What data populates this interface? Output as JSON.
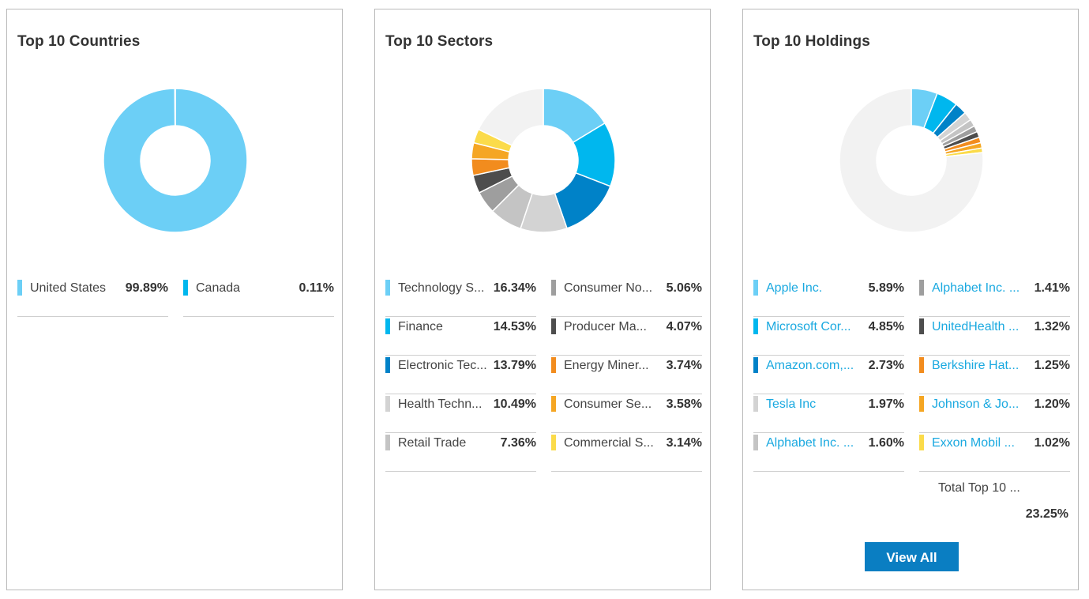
{
  "cards": {
    "countries": {
      "title": "Top 10 Countries"
    },
    "sectors": {
      "title": "Top 10 Sectors"
    },
    "holdings": {
      "title": "Top 10 Holdings",
      "total_label": "Total Top 10 ...",
      "total_value": "23.25%",
      "view_all_label": "View All",
      "remainder_color": "#f2f2f2"
    }
  },
  "chart_data": [
    {
      "type": "pie",
      "title": "Top 10 Countries",
      "labels": [
        "United States",
        "Canada"
      ],
      "display_labels": [
        "United States",
        "Canada"
      ],
      "values": [
        99.89,
        0.11
      ],
      "value_labels": [
        "99.89%",
        "0.11%"
      ],
      "colors": [
        "#6ccff6",
        "#00b7ee"
      ]
    },
    {
      "type": "pie",
      "title": "Top 10 Sectors",
      "labels": [
        "Technology Services",
        "Finance",
        "Electronic Technology",
        "Health Technology",
        "Retail Trade",
        "Consumer Non-Durables",
        "Producer Manufacturing",
        "Energy Minerals",
        "Consumer Services",
        "Commercial Services"
      ],
      "display_labels": [
        "Technology S...",
        "Finance",
        "Electronic Tec...",
        "Health Techn...",
        "Retail Trade",
        "Consumer No...",
        "Producer Ma...",
        "Energy Miner...",
        "Consumer Se...",
        "Commercial S..."
      ],
      "values": [
        16.34,
        14.53,
        13.79,
        10.49,
        7.36,
        5.06,
        4.07,
        3.74,
        3.58,
        3.14
      ],
      "value_labels": [
        "16.34%",
        "14.53%",
        "13.79%",
        "10.49%",
        "7.36%",
        "5.06%",
        "4.07%",
        "3.74%",
        "3.58%",
        "3.14%"
      ],
      "colors": [
        "#6ccff6",
        "#00b7ee",
        "#0082c8",
        "#d3d3d3",
        "#c4c4c4",
        "#9e9e9e",
        "#4d4d4d",
        "#f28c1e",
        "#f5a623",
        "#fbdb4a"
      ],
      "remainder_color": "#f2f2f2"
    },
    {
      "type": "pie",
      "title": "Top 10 Holdings",
      "labels": [
        "Apple Inc.",
        "Microsoft Corporation",
        "Amazon.com, Inc.",
        "Tesla Inc",
        "Alphabet Inc. Class A",
        "Alphabet Inc. Class C",
        "UnitedHealth Group",
        "Berkshire Hathaway",
        "Johnson & Johnson",
        "Exxon Mobil"
      ],
      "display_labels": [
        "Apple Inc.",
        "Microsoft Cor...",
        "Amazon.com,...",
        "Tesla Inc",
        "Alphabet Inc. ...",
        "Alphabet Inc. ...",
        "UnitedHealth ...",
        "Berkshire Hat...",
        "Johnson & Jo...",
        "Exxon Mobil ..."
      ],
      "values": [
        5.89,
        4.85,
        2.73,
        1.97,
        1.6,
        1.41,
        1.32,
        1.25,
        1.2,
        1.02
      ],
      "value_labels": [
        "5.89%",
        "4.85%",
        "2.73%",
        "1.97%",
        "1.60%",
        "1.41%",
        "1.32%",
        "1.25%",
        "1.20%",
        "1.02%"
      ],
      "colors": [
        "#6ccff6",
        "#00b7ee",
        "#0082c8",
        "#d3d3d3",
        "#c4c4c4",
        "#9e9e9e",
        "#4d4d4d",
        "#f28c1e",
        "#f5a623",
        "#fbdb4a"
      ],
      "remainder_color": "#f2f2f2"
    }
  ]
}
